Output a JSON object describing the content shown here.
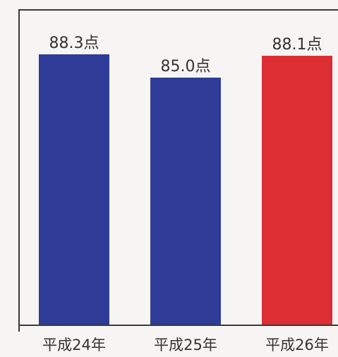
{
  "chart_data": {
    "type": "bar",
    "categories": [
      "平成24年",
      "平成25年",
      "平成26年"
    ],
    "values": [
      88.3,
      85.0,
      88.1
    ],
    "value_labels": [
      "88.3点",
      "85.0点",
      "88.1点"
    ],
    "ylim": [
      50,
      95
    ],
    "grid": false,
    "colors": [
      "#2f3c97",
      "#2f3c97",
      "#dd2e34"
    ]
  }
}
